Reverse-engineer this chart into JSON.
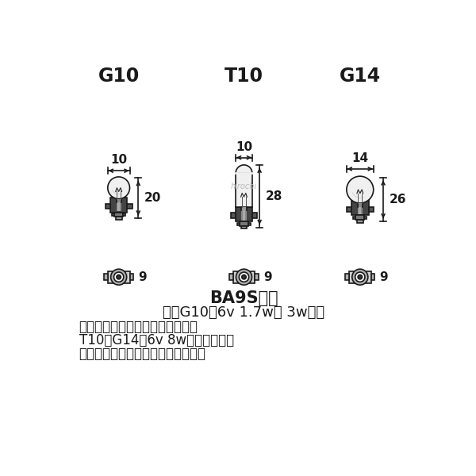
{
  "bg_color": "#ffffff",
  "text_color": "#1a1a1a",
  "line_color": "#1a1a1a",
  "dim_color": "#333333",
  "title_labels": [
    "G10",
    "T10",
    "G14"
  ],
  "width_labels": [
    "10",
    "10",
    "14"
  ],
  "height_labels": [
    "20",
    "28",
    "26"
  ],
  "bottom_label": "9",
  "ba9s_label": "BA9S口金",
  "line1": "主にG10の6v 1.7w、 3wなど",
  "line2": "上記形状の電球と交換できます。",
  "line3": "T10、G14の6v 8wなどとも交換",
  "line4": "できますが、用途にご注意下さい。",
  "watermark": "hirochi"
}
